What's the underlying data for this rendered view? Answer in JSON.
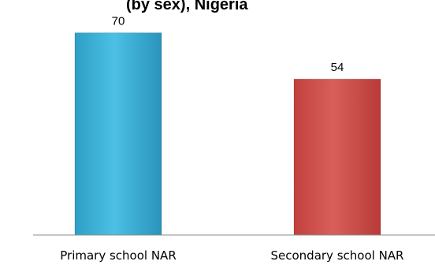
{
  "title_fragment": "(by sex), Nigeria",
  "chart_data": {
    "type": "bar",
    "categories": [
      "Primary school NAR",
      "Secondary school NAR"
    ],
    "values": [
      70,
      54
    ],
    "data_labels": [
      "70",
      "54"
    ],
    "colors": [
      "#3FB3D8",
      "#D15552"
    ],
    "ylim": [
      0,
      77
    ],
    "grid": false,
    "legend": "none",
    "title": "",
    "xlabel": "",
    "ylabel": ""
  }
}
